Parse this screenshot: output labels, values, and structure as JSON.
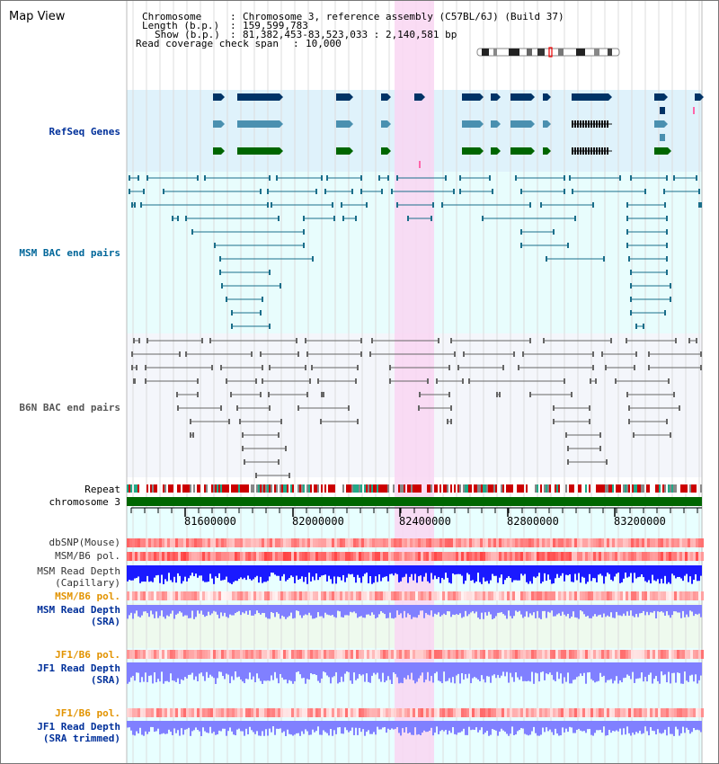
{
  "page": {
    "title": "Map View"
  },
  "info": {
    "chromosome_label": "Chromosome",
    "chromosome_value": "Chromosome 3, reference assembly (C57BL/6J) (Build 37)",
    "length_label": "Length (b.p.)",
    "length_value": "159,599,783",
    "show_label": "Show (b.p.)",
    "show_value": "81,382,453-83,523,033 : 2,140,581 bp",
    "coverage_label": "Read coverage check span",
    "coverage_value": "10,000"
  },
  "tracks": {
    "refseq": "RefSeq Genes",
    "msm_bac": "MSM BAC end pairs",
    "b6n_bac": "B6N BAC end pairs",
    "repeat": "Repeat",
    "chromosome": "chromosome 3",
    "dbsnp": "dbSNP(Mouse)",
    "msm_b6_pol_1": "MSM/B6 pol.",
    "msm_depth_cap_1": "MSM Read Depth",
    "msm_depth_cap_2": "(Capillary)",
    "msm_b6_pol_2": "MSM/B6 pol.",
    "msm_depth_sra_1": "MSM Read Depth",
    "msm_depth_sra_2": "(SRA)",
    "jf1_b6_pol_1": "JF1/B6 pol.",
    "jf1_depth_sra_1": "JF1 Read Depth",
    "jf1_depth_sra_2": "(SRA)",
    "jf1_b6_pol_2": "JF1/B6 pol.",
    "jf1_depth_trim_1": "JF1 Read Depth",
    "jf1_depth_trim_2": "(SRA trimmed)"
  },
  "axis": {
    "ticks": [
      "81600000",
      "82000000",
      "82400000",
      "82800000",
      "83200000"
    ]
  },
  "colors": {
    "refseq_bg": "#dff2fb",
    "msm_bg": "#e8fdfd",
    "b6n_bg": "#f4f6fb",
    "highlight": "#f9d6f2",
    "gene_navy": "#003366",
    "gene_steel": "#4a90b0",
    "gene_green": "#006600",
    "chromosome_bar": "#006600",
    "msm_pair": "#1a6e8a",
    "b6n_pair": "#666666",
    "repeat_red": "#cc0000",
    "snp_red": "#e83030",
    "depth_blue": "#1a1aff",
    "depth_light_blue": "#8080ff"
  }
}
